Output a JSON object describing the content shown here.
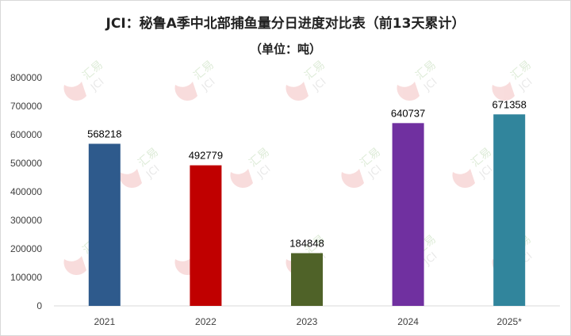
{
  "chart_data": {
    "type": "bar",
    "title": "JCI：秘鲁A季中北部捕鱼量分日进度对比表（前13天累计）",
    "subtitle": "（单位：吨）",
    "categories": [
      "2021",
      "2022",
      "2023",
      "2024",
      "2025*"
    ],
    "values": [
      568218,
      492779,
      184848,
      640737,
      671358
    ],
    "colors": [
      "#2e5a8c",
      "#c00000",
      "#4f6228",
      "#7030a0",
      "#31859c"
    ],
    "yticks": [
      "0",
      "100000",
      "200000",
      "300000",
      "400000",
      "500000",
      "600000",
      "700000",
      "800000"
    ],
    "ylim": [
      0,
      800000
    ],
    "grid": false,
    "legend": "none"
  },
  "watermark": {
    "line1": "汇易",
    "line2": "JCI"
  }
}
